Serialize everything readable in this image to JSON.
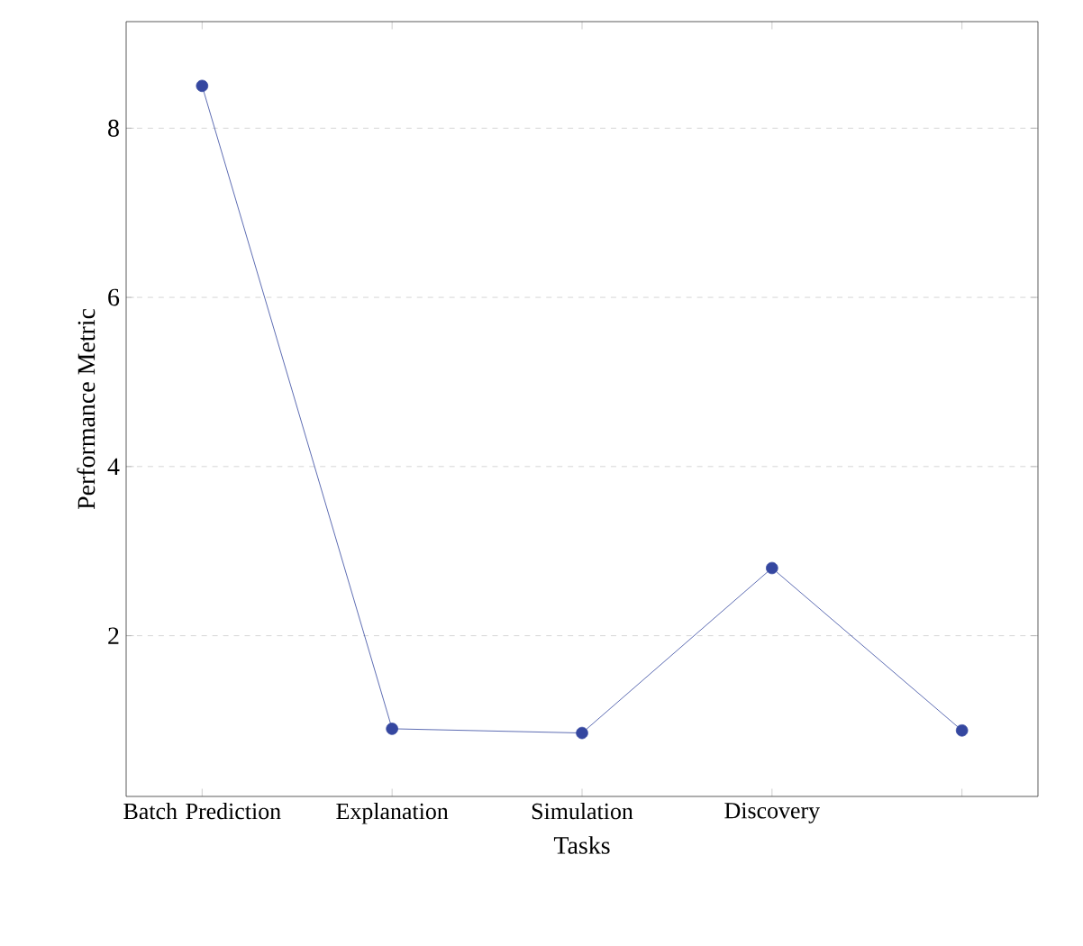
{
  "chart_data": {
    "type": "line",
    "xlabel": "Tasks",
    "ylabel": "Performance Metric",
    "categories": [
      "Batch Prediction",
      "Explanation",
      "Simulation",
      "Discovery",
      null
    ],
    "series": [
      {
        "color": "#3547a0",
        "values": [
          8.5,
          0.9,
          0.85,
          2.8,
          0.88
        ]
      }
    ],
    "ylim": [
      0.1,
      9.26
    ],
    "yticks": [
      2,
      4,
      6,
      8
    ],
    "grid": "y",
    "marker": "circle",
    "line_style": "solid"
  }
}
